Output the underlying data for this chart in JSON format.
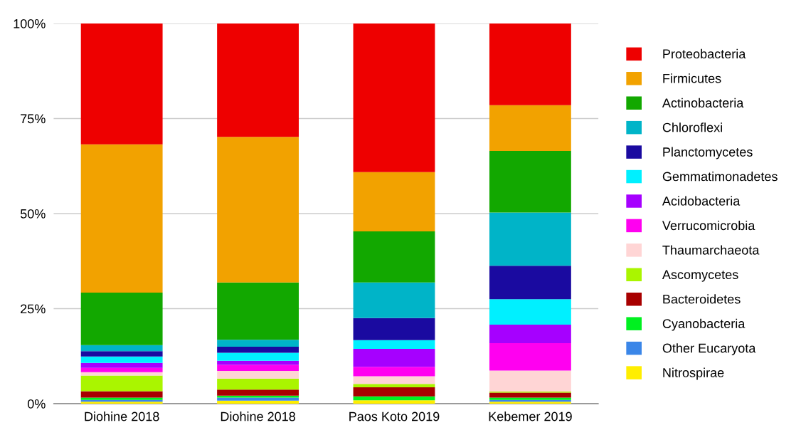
{
  "chart_data": {
    "type": "bar",
    "stacked": true,
    "categories": [
      "Diohine 2018",
      "Diohine 2018",
      "Paos Koto 2019",
      "Kebemer 2019"
    ],
    "series": [
      {
        "name": "Nitrospirae",
        "color": "#ffee00",
        "values": [
          0.5,
          0.8,
          0.9,
          0.5
        ]
      },
      {
        "name": "Other Eucaryota",
        "color": "#3a86e8",
        "values": [
          0.5,
          0.8,
          0,
          0.5
        ]
      },
      {
        "name": "Cyanobacteria",
        "color": "#00f020",
        "values": [
          0.6,
          0.5,
          1.0,
          0.6
        ]
      },
      {
        "name": "Bacteroidetes",
        "color": "#a80000",
        "values": [
          1.7,
          1.6,
          2.4,
          1.3
        ]
      },
      {
        "name": "Ascomycetes",
        "color": "#aaf500",
        "values": [
          4.1,
          2.9,
          0.9,
          0.3
        ]
      },
      {
        "name": "Thaumarchaeota",
        "color": "#ffd5d5",
        "values": [
          0.9,
          2.0,
          2.0,
          5.5
        ]
      },
      {
        "name": "Verrucomicrobia",
        "color": "#ff00f0",
        "values": [
          1.1,
          1.6,
          2.5,
          7.2
        ]
      },
      {
        "name": "Acidobacteria",
        "color": "#a600ff",
        "values": [
          1.3,
          1.1,
          4.7,
          4.9
        ]
      },
      {
        "name": "Gemmatimonadetes",
        "color": "#00f0ff",
        "values": [
          1.7,
          2.1,
          2.3,
          6.7
        ]
      },
      {
        "name": "Planctomycetes",
        "color": "#1a0aa0",
        "values": [
          1.4,
          1.6,
          5.8,
          8.8
        ]
      },
      {
        "name": "Chloroflexi",
        "color": "#00b4c8",
        "values": [
          1.6,
          1.8,
          9.4,
          14.0
        ]
      },
      {
        "name": "Actinobacteria",
        "color": "#12a800",
        "values": [
          13.8,
          15.1,
          13.4,
          16.2
        ]
      },
      {
        "name": "Firmicutes",
        "color": "#f2a200",
        "values": [
          39.0,
          38.3,
          15.6,
          12.0
        ]
      },
      {
        "name": "Proteobacteria",
        "color": "#ee0000",
        "values": [
          31.8,
          29.8,
          39.1,
          21.5
        ]
      }
    ],
    "ylim": [
      0,
      100
    ],
    "yticks": [
      {
        "value": 0,
        "label": "0%"
      },
      {
        "value": 25,
        "label": "25%"
      },
      {
        "value": 50,
        "label": "50%"
      },
      {
        "value": 75,
        "label": "75%"
      },
      {
        "value": 100,
        "label": "100%"
      }
    ],
    "grid": "y",
    "legend": "right"
  }
}
